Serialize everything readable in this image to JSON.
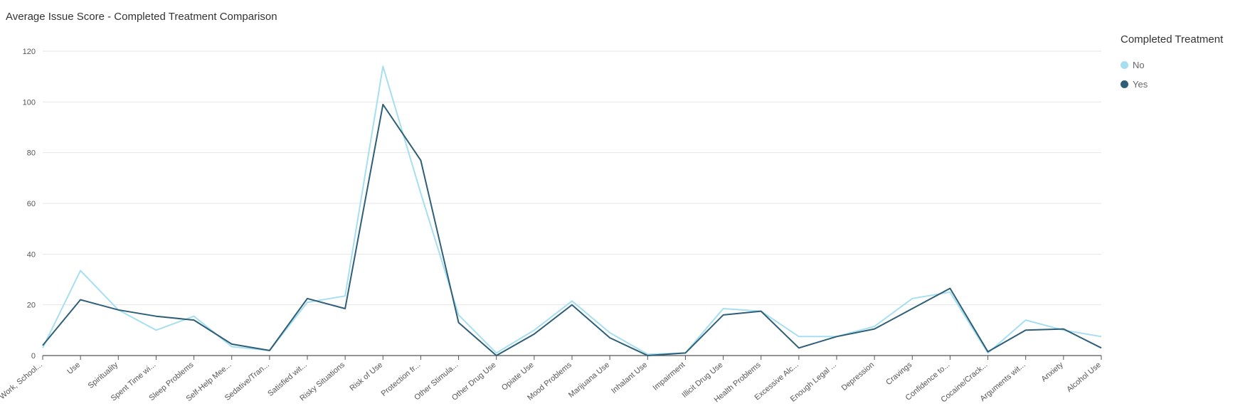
{
  "title": "Average Issue Score - Completed Treatment Comparison",
  "legend": {
    "title": "Completed Treatment",
    "items": [
      {
        "label": "No",
        "color": "#a6dff0"
      },
      {
        "label": "Yes",
        "color": "#2e5f78"
      }
    ]
  },
  "chart_data": {
    "type": "line",
    "categories": [
      "Work, School...",
      "Use",
      "Spirituality",
      "Spent Time wi...",
      "Sleep Problems",
      "Self-Help Mee...",
      "Sedative/Tran...",
      "Satisfied wit...",
      "Risky Situations",
      "Risk of Use",
      "Protection fr...",
      "Other Stimula...",
      "Other Drug Use",
      "Opiate Use",
      "Mood Problems",
      "Marijuana Use",
      "Inhalant Use",
      "Impairment",
      "Illicit Drug Use",
      "Health Problems",
      "Excessive Alc...",
      "Enough Legal ...",
      "Depression",
      "Cravings",
      "Confidence to...",
      "Cocaine/Crack...",
      "Arguments wit...",
      "Anxiety",
      "Alcohol Use"
    ],
    "series": [
      {
        "name": "No",
        "color": "#a6dff0",
        "values": [
          3,
          33.5,
          18,
          10,
          15.5,
          3.5,
          2,
          21,
          23.5,
          114,
          64,
          16,
          1,
          10,
          21.5,
          9,
          0.5,
          1,
          18.5,
          17.5,
          7.5,
          7.5,
          11.5,
          22.5,
          25,
          1,
          14,
          10,
          7.5
        ]
      },
      {
        "name": "Yes",
        "color": "#2e5f78",
        "values": [
          4,
          22,
          18,
          15.5,
          14,
          4.5,
          2,
          22.5,
          18.5,
          99,
          77,
          13,
          0,
          8.5,
          20,
          7,
          0,
          1,
          16,
          17.5,
          3,
          7.5,
          10.5,
          18.5,
          26.5,
          1.5,
          10,
          10.5,
          3
        ]
      }
    ],
    "ylim": [
      0,
      120
    ],
    "yticks": [
      "0",
      "20",
      "40",
      "60",
      "80",
      "100",
      "120"
    ],
    "grid": true,
    "legend_position": "right"
  }
}
